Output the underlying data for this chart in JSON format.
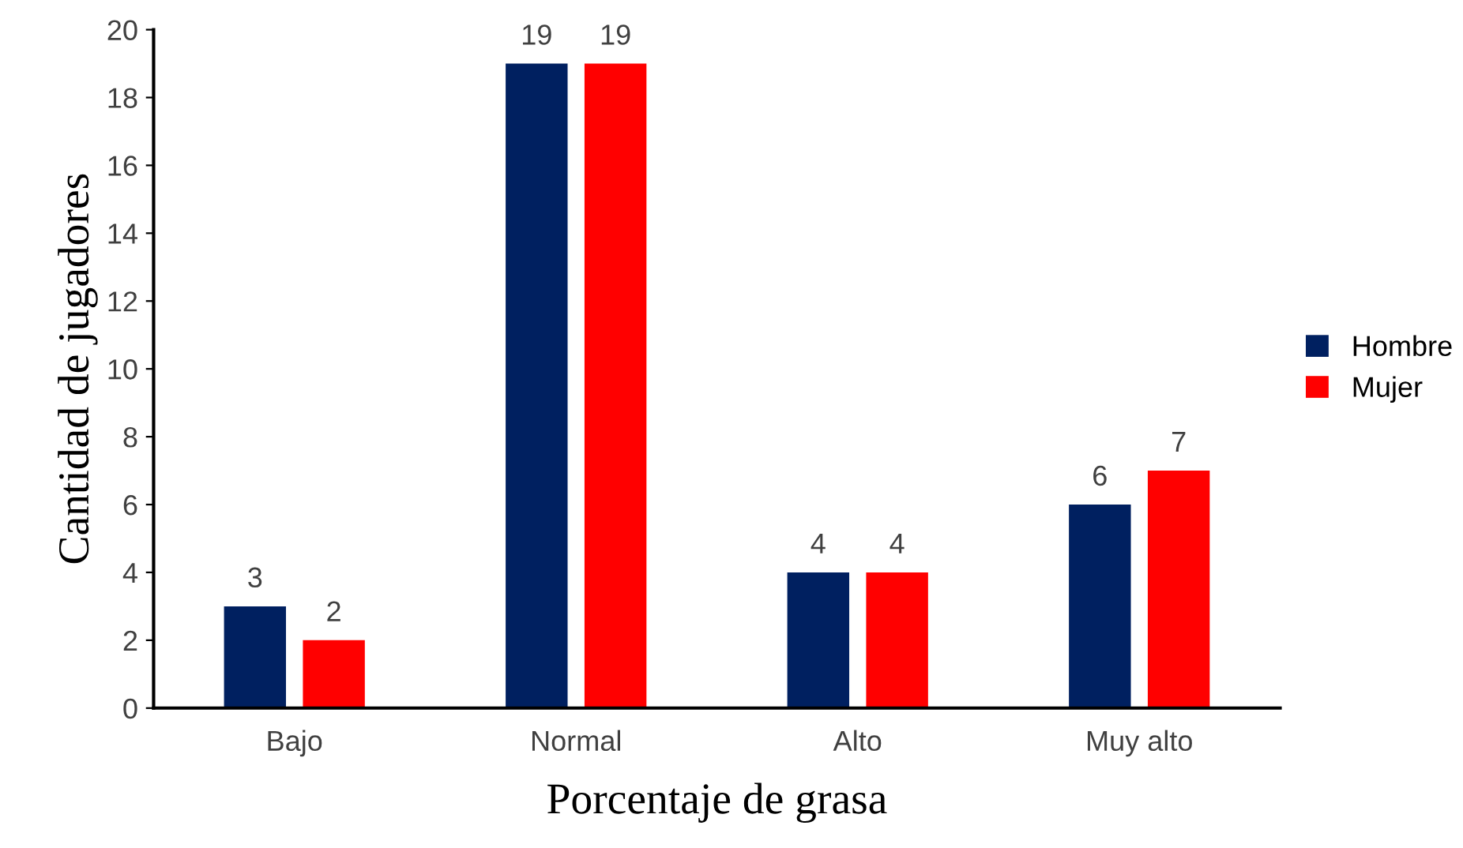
{
  "chart_data": {
    "type": "bar",
    "xlabel": "Porcentaje de grasa",
    "ylabel": "Cantidad de jugadores",
    "categories": [
      "Bajo",
      "Normal",
      "Alto",
      "Muy alto"
    ],
    "series": [
      {
        "name": "Hombre",
        "color": "#002060",
        "values": [
          3,
          19,
          4,
          6
        ]
      },
      {
        "name": "Mujer",
        "color": "#ff0000",
        "values": [
          2,
          19,
          4,
          7
        ]
      }
    ],
    "ylim": [
      0,
      20
    ],
    "yticks": [
      0,
      2,
      4,
      6,
      8,
      10,
      12,
      14,
      16,
      18,
      20
    ],
    "grid": false,
    "legend": "right",
    "data_labels": true
  }
}
